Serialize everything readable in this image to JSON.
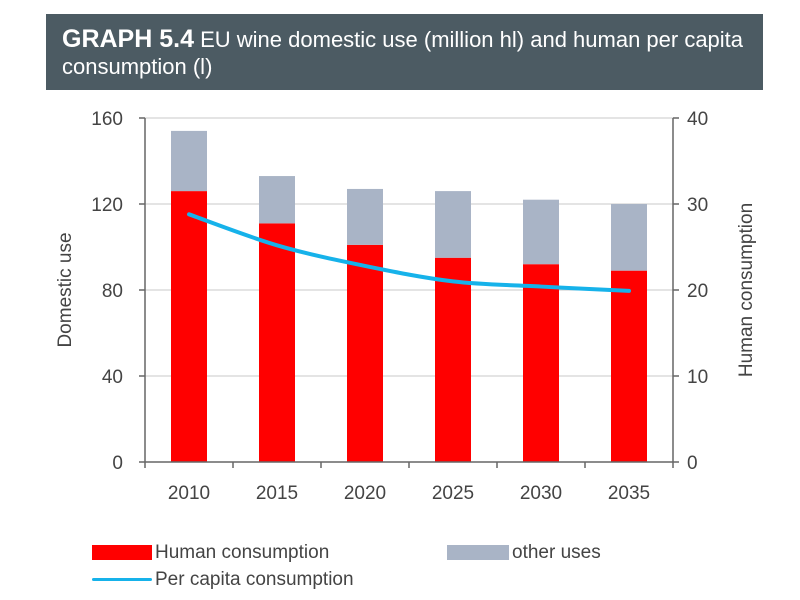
{
  "title": {
    "label": "GRAPH 5.4",
    "text": "EU wine domestic use (million hl) and human per capita consumption (l)"
  },
  "colors": {
    "human": "#ff0000",
    "other": "#a9b4c6",
    "line": "#16b2ea",
    "axis": "#666666",
    "grid": "#c8c8c8",
    "title_bg": "#4c5b63"
  },
  "chart_data": {
    "type": "bar",
    "categories": [
      "2010",
      "2015",
      "2020",
      "2025",
      "2030",
      "2035"
    ],
    "series": [
      {
        "name": "Human consumption",
        "kind": "stacked-bar",
        "axis": "left",
        "values": [
          126,
          111,
          101,
          95,
          92,
          89
        ]
      },
      {
        "name": "other uses",
        "kind": "stacked-bar",
        "axis": "left",
        "values": [
          28,
          22,
          26,
          31,
          30,
          31
        ]
      },
      {
        "name": "Per capita consumption",
        "kind": "line",
        "axis": "right",
        "values": [
          28.8,
          25.2,
          22.8,
          21.0,
          20.4,
          19.9
        ]
      }
    ],
    "ylabel": "Domestic use",
    "ylabel_right": "Human consumption",
    "ylim": [
      0,
      160
    ],
    "ylim_right": [
      0,
      40
    ],
    "yticks": [
      "0",
      "40",
      "80",
      "120",
      "160"
    ],
    "yticks_right": [
      "0",
      "10",
      "20",
      "30",
      "40"
    ],
    "grid": true,
    "legend": [
      "Human consumption",
      "other uses",
      "Per capita consumption"
    ]
  }
}
